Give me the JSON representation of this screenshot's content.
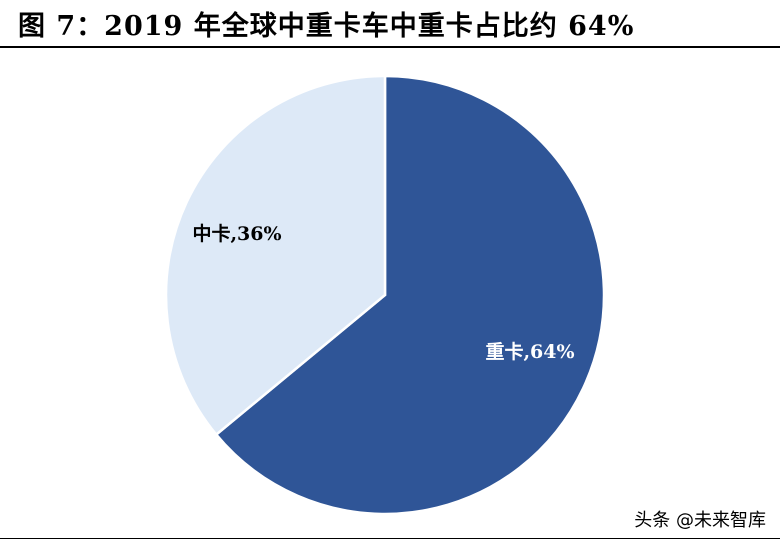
{
  "figure": {
    "title": "图 7：2019 年全球中重卡车中重卡占比约 64%"
  },
  "watermark": "头条 @未来智库",
  "chart_data": {
    "type": "pie",
    "title": "",
    "slices": [
      {
        "name": "重卡",
        "value": 64,
        "label": "重卡,64%",
        "color": "#2f5597",
        "label_color": "#ffffff"
      },
      {
        "name": "中卡",
        "value": 36,
        "label": "中卡,36%",
        "color": "#dde9f7",
        "label_color": "#000000"
      }
    ],
    "legend": "none",
    "start_angle": "12 o'clock, clockwise"
  }
}
